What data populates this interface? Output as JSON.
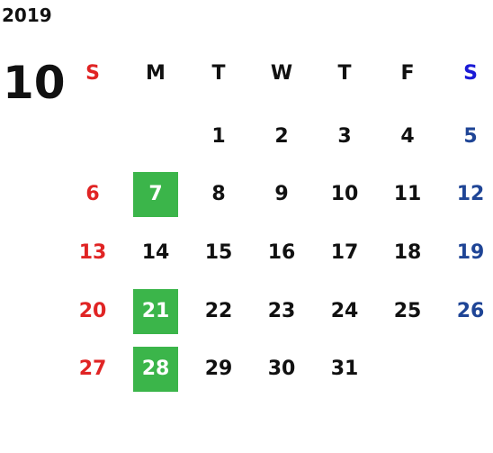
{
  "header": {
    "year": "2019",
    "month": "10"
  },
  "weekdays": [
    "S",
    "M",
    "T",
    "W",
    "T",
    "F",
    "S"
  ],
  "weeks": [
    [
      null,
      null,
      {
        "day": 1
      },
      {
        "day": 2
      },
      {
        "day": 3
      },
      {
        "day": 4
      },
      {
        "day": 5
      }
    ],
    [
      {
        "day": 6
      },
      {
        "day": 7,
        "highlight": true
      },
      {
        "day": 8
      },
      {
        "day": 9
      },
      {
        "day": 10
      },
      {
        "day": 11
      },
      {
        "day": 12
      }
    ],
    [
      {
        "day": 13
      },
      {
        "day": 14
      },
      {
        "day": 15
      },
      {
        "day": 16
      },
      {
        "day": 17
      },
      {
        "day": 18
      },
      {
        "day": 19
      }
    ],
    [
      {
        "day": 20
      },
      {
        "day": 21,
        "highlight": true
      },
      {
        "day": 22
      },
      {
        "day": 23
      },
      {
        "day": 24
      },
      {
        "day": 25
      },
      {
        "day": 26
      }
    ],
    [
      {
        "day": 27
      },
      {
        "day": 28,
        "highlight": true
      },
      {
        "day": 29
      },
      {
        "day": 30
      },
      {
        "day": 31
      },
      null,
      null
    ]
  ]
}
